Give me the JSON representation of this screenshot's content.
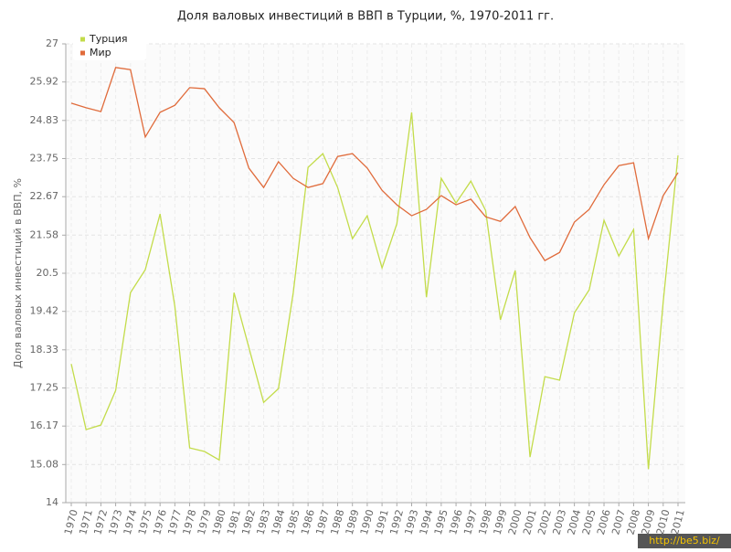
{
  "chart_data": {
    "type": "line",
    "title": "Доля валовых инвестиций в ВВП в Турции, %, 1970-2011 гг.",
    "y_label": "Доля валовых инвестиций в ВВП, %",
    "watermark": "http://be5.biz/",
    "categories": [
      "1970",
      "1971",
      "1972",
      "1973",
      "1974",
      "1975",
      "1976",
      "1977",
      "1978",
      "1979",
      "1980",
      "1981",
      "1982",
      "1983",
      "1984",
      "1985",
      "1986",
      "1987",
      "1988",
      "1989",
      "1990",
      "1991",
      "1992",
      "1993",
      "1994",
      "1995",
      "1996",
      "1997",
      "1998",
      "1999",
      "2000",
      "2001",
      "2002",
      "2003",
      "2004",
      "2005",
      "2006",
      "2007",
      "2008",
      "2009",
      "2010",
      "2011"
    ],
    "series": [
      {
        "name": "Турция",
        "color": "#c3dc4a",
        "values": [
          17.93,
          16.07,
          16.2,
          17.18,
          19.95,
          20.6,
          22.18,
          19.56,
          15.55,
          15.45,
          15.21,
          19.95,
          18.4,
          16.84,
          17.23,
          19.95,
          23.5,
          23.89,
          22.93,
          21.48,
          22.13,
          20.65,
          21.9,
          25.06,
          19.82,
          23.19,
          22.49,
          23.11,
          22.28,
          19.18,
          20.58,
          15.29,
          17.57,
          17.47,
          19.38,
          20.03,
          22.0,
          20.99,
          21.74,
          14.95,
          19.69,
          23.84
        ]
      },
      {
        "name": "Мир",
        "color": "#e06b3b",
        "values": [
          25.32,
          25.19,
          25.08,
          26.33,
          26.27,
          24.36,
          25.06,
          25.26,
          25.76,
          25.73,
          25.19,
          24.77,
          23.48,
          22.93,
          23.66,
          23.19,
          22.93,
          23.04,
          23.81,
          23.89,
          23.48,
          22.85,
          22.44,
          22.13,
          22.31,
          22.7,
          22.44,
          22.6,
          22.1,
          21.97,
          22.39,
          21.51,
          20.86,
          21.09,
          21.95,
          22.31,
          23.01,
          23.55,
          23.63,
          21.48,
          22.7,
          23.35
        ]
      }
    ],
    "ylim": [
      14,
      27
    ],
    "yticks": [
      14,
      15.08,
      16.17,
      17.25,
      18.33,
      19.42,
      20.5,
      21.58,
      22.67,
      23.75,
      24.83,
      25.92,
      27
    ],
    "grid": true,
    "legend": "upper left"
  }
}
